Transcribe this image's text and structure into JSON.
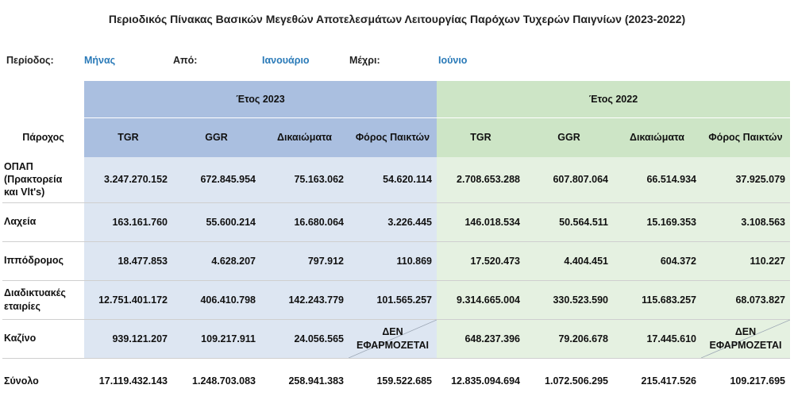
{
  "title": "Περιοδικός Πίνακας Βασικών Μεγεθών Αποτελεσμάτων Λειτουργίας Παρόχων Τυχερών Παιγνίων (2023-2022)",
  "period": {
    "period_label": "Περίοδος:",
    "period_value": "Μήνας",
    "from_label": "Από:",
    "from_value": "Ιανουάριο",
    "to_label": "Μέχρι:",
    "to_value": "Ιούνιο"
  },
  "table": {
    "provider_header": "Πάροχος",
    "year_2023": "Έτος 2023",
    "year_2022": "Έτος 2022",
    "columns": [
      "TGR",
      "GGR",
      "Δικαιώματα",
      "Φόρος Παικτών"
    ],
    "rows": [
      {
        "provider": [
          "ΟΠΑΠ",
          "(Πρακτορεία",
          "και Vlt's)"
        ],
        "y2023": [
          "3.247.270.152",
          "672.845.954",
          "75.163.062",
          "54.620.114"
        ],
        "y2022": [
          "2.708.653.288",
          "607.807.064",
          "66.514.934",
          "37.925.079"
        ]
      },
      {
        "provider": [
          "Λαχεία"
        ],
        "y2023": [
          "163.161.760",
          "55.600.214",
          "16.680.064",
          "3.226.445"
        ],
        "y2022": [
          "146.018.534",
          "50.564.511",
          "15.169.353",
          "3.108.563"
        ]
      },
      {
        "provider": [
          "Ιππόδρομος"
        ],
        "y2023": [
          "18.477.853",
          "4.628.207",
          "797.912",
          "110.869"
        ],
        "y2022": [
          "17.520.473",
          "4.404.451",
          "604.372",
          "110.227"
        ]
      },
      {
        "provider": [
          "Διαδικτυακές",
          "εταιρίες"
        ],
        "y2023": [
          "12.751.401.172",
          "406.410.798",
          "142.243.779",
          "101.565.257"
        ],
        "y2022": [
          "9.314.665.004",
          "330.523.590",
          "115.683.257",
          "68.073.827"
        ]
      },
      {
        "provider": [
          "Καζίνο"
        ],
        "y2023": [
          "939.121.207",
          "109.217.911",
          "24.056.565",
          "ΔΕΝ ΕΦΑΡΜΟΖΕΤΑΙ"
        ],
        "y2022": [
          "648.237.396",
          "79.206.678",
          "17.445.610",
          "ΔΕΝ ΕΦΑΡΜΟΖΕΤΑΙ"
        ]
      }
    ],
    "total": {
      "label": "Σύνολο",
      "y2023": [
        "17.119.432.143",
        "1.248.703.083",
        "258.941.383",
        "159.522.685"
      ],
      "y2022": [
        "12.835.094.694",
        "1.072.506.295",
        "215.417.526",
        "109.217.695"
      ]
    },
    "not_applicable_line1": "ΔΕΝ",
    "not_applicable_line2": "ΕΦΑΡΜΟΖΕΤΑΙ"
  },
  "colors": {
    "header_2023": "#aabfe0",
    "body_2023": "#dde6f2",
    "header_2022": "#cde5c6",
    "body_2022": "#e5f1e1",
    "period_value": "#2a7ab8"
  }
}
